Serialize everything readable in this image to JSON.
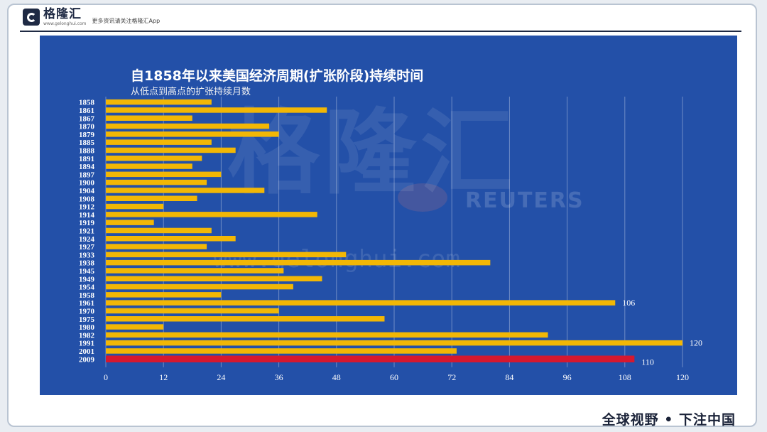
{
  "header": {
    "brand_name": "格隆汇",
    "brand_url": "www.gelonghui.com",
    "tagline": "更多资讯请关注格隆汇App"
  },
  "watermark": {
    "brand": "格隆汇",
    "source": "REUTERS",
    "url": "www.gelonghui.com"
  },
  "footer": {
    "slogan": "全球视野 • 下注中国"
  },
  "colors": {
    "panel": "#2350a8",
    "bar": "#f2b705",
    "highlight_bar": "#d6182f",
    "frame_border": "#b9c4d2"
  },
  "chart_data": {
    "type": "bar",
    "orientation": "horizontal",
    "title": "自1858年以来美国经济周期(扩张阶段)持续时间",
    "subtitle": "从低点到高点的扩张持续月数",
    "xlabel": "",
    "ylabel": "",
    "xlim": [
      0,
      120
    ],
    "xticks": [
      "0",
      "12",
      "24",
      "36",
      "48",
      "60",
      "72",
      "84",
      "96",
      "108",
      "120"
    ],
    "grid": true,
    "categories": [
      "1858",
      "1861",
      "1867",
      "1870",
      "1879",
      "1885",
      "1888",
      "1891",
      "1894",
      "1897",
      "1900",
      "1904",
      "1908",
      "1912",
      "1914",
      "1919",
      "1921",
      "1924",
      "1927",
      "1933",
      "1938",
      "1945",
      "1949",
      "1954",
      "1958",
      "1961",
      "1970",
      "1975",
      "1980",
      "1982",
      "1991",
      "2001",
      "2009"
    ],
    "values": [
      22,
      46,
      18,
      34,
      36,
      22,
      27,
      20,
      18,
      24,
      21,
      33,
      19,
      12,
      44,
      10,
      22,
      27,
      21,
      50,
      80,
      37,
      45,
      39,
      24,
      106,
      36,
      58,
      12,
      92,
      120,
      73,
      110
    ],
    "highlight": "2009",
    "data_labels": {
      "1961": "106",
      "1991": "120",
      "2009": "110"
    }
  }
}
